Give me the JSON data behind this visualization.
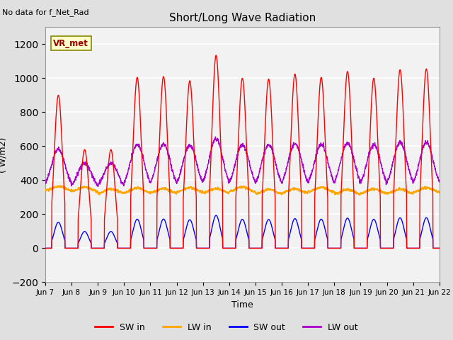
{
  "title": "Short/Long Wave Radiation",
  "xlabel": "Time",
  "ylabel": "( W/m2)",
  "ylim": [
    -200,
    1300
  ],
  "yticks": [
    -200,
    0,
    200,
    400,
    600,
    800,
    1000,
    1200
  ],
  "legend_label": "VR_met",
  "top_left_text": "No data for f_Net_Rad",
  "x_tick_labels": [
    "Jun 7",
    "Jun 8",
    "Jun 9",
    "Jun 10",
    "Jun 11",
    "Jun 12",
    "Jun 13",
    "Jun 14",
    "Jun 15",
    "Jun 16",
    "Jun 17",
    "Jun 18",
    "Jun 19",
    "Jun 20",
    "Jun 21",
    "Jun 22"
  ],
  "colors": {
    "SW_in": "#ff0000",
    "LW_in": "#ffa500",
    "SW_out": "#0000ff",
    "LW_out": "#aa00cc"
  },
  "sw_in_peaks": [
    900,
    580,
    580,
    1005,
    1010,
    985,
    1135,
    1000,
    995,
    1025,
    1005,
    1040,
    1000,
    1050,
    1055
  ],
  "n_days": 15,
  "pts_per_day": 144
}
